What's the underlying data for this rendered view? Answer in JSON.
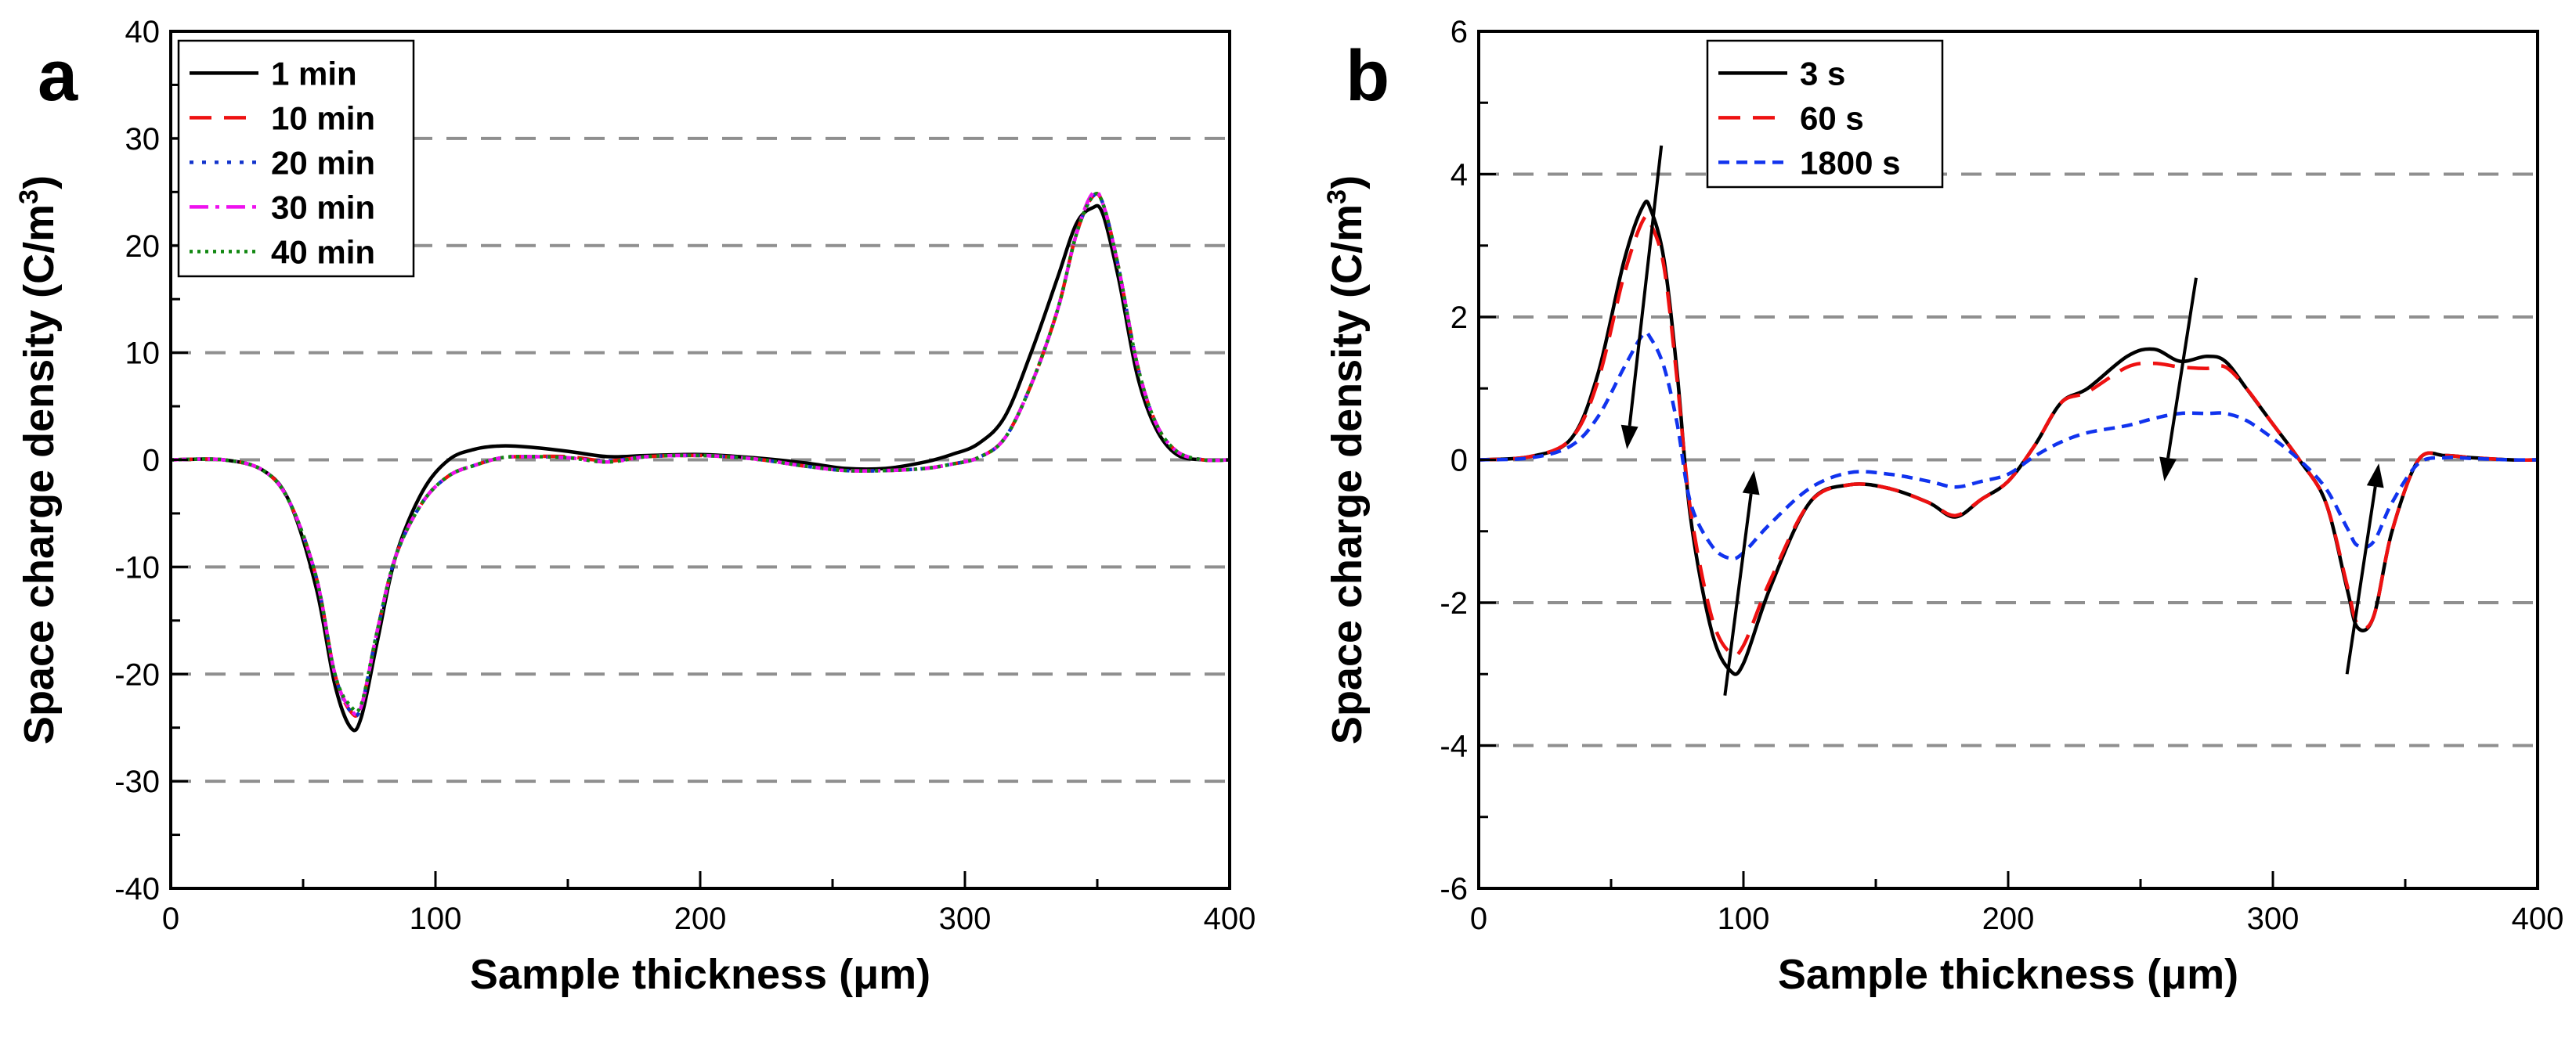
{
  "chart_data": [
    {
      "type": "line",
      "panel_label": "a",
      "title": "",
      "xlabel": "Sample thickness (μm)",
      "ylabel": "Space charge density (C/m³)",
      "ylabel_parts": {
        "main": "Space charge density (C/m",
        "sup": "3",
        "end": ")"
      },
      "xlim": [
        0,
        400
      ],
      "ylim": [
        -40,
        40
      ],
      "xticks": [
        0,
        100,
        200,
        300,
        400
      ],
      "yticks": [
        -40,
        -30,
        -20,
        -10,
        0,
        10,
        20,
        30,
        40
      ],
      "xtick_labels": [
        "0",
        "100",
        "200",
        "300",
        "400"
      ],
      "ytick_labels": [
        "-40",
        "-30",
        "-20",
        "-10",
        "0",
        "10",
        "20",
        "30",
        "40"
      ],
      "grid": "horizontal dashed gray",
      "legend_position": "top-left",
      "series": [
        {
          "name": "1 min",
          "color": "#000000",
          "dash": "solid",
          "x": [
            0,
            20,
            35,
            45,
            55,
            62,
            68,
            72,
            78,
            85,
            95,
            105,
            115,
            125,
            135,
            150,
            165,
            180,
            200,
            220,
            240,
            255,
            270,
            285,
            295,
            305,
            315,
            325,
            335,
            342,
            348,
            352,
            358,
            365,
            372,
            380,
            390,
            400
          ],
          "y": [
            0,
            0,
            -1,
            -4,
            -12,
            -21,
            -25,
            -24,
            -17,
            -9,
            -3,
            0,
            1,
            1.3,
            1.2,
            0.8,
            0.3,
            0.4,
            0.5,
            0.2,
            -0.3,
            -0.8,
            -0.8,
            -0.2,
            0.5,
            1.5,
            4,
            10,
            17,
            22,
            23.5,
            23,
            17,
            8,
            3,
            0.5,
            0,
            0
          ]
        },
        {
          "name": "10 min",
          "color": "#ee1111",
          "dash": "28,16",
          "x": [
            0,
            20,
            35,
            45,
            55,
            62,
            68,
            72,
            78,
            85,
            95,
            105,
            115,
            125,
            135,
            150,
            165,
            180,
            200,
            220,
            240,
            255,
            270,
            285,
            295,
            305,
            315,
            325,
            335,
            342,
            348,
            352,
            358,
            365,
            372,
            380,
            390,
            400
          ],
          "y": [
            0,
            0,
            -1,
            -4,
            -11,
            -20,
            -23.5,
            -23,
            -16,
            -9,
            -4,
            -1.5,
            -0.5,
            0.2,
            0.3,
            0.3,
            -0.1,
            0.3,
            0.4,
            0.1,
            -0.6,
            -1,
            -1,
            -0.8,
            -0.4,
            0.2,
            2,
            7,
            14,
            21,
            24.5,
            24,
            18,
            9,
            3.5,
            0.8,
            0,
            0
          ]
        },
        {
          "name": "20 min",
          "color": "#1133cc",
          "dash": "5,11",
          "x": [
            0,
            20,
            35,
            45,
            55,
            62,
            68,
            72,
            78,
            85,
            95,
            105,
            115,
            125,
            135,
            150,
            165,
            180,
            200,
            220,
            240,
            255,
            270,
            285,
            295,
            305,
            315,
            325,
            335,
            342,
            348,
            352,
            358,
            365,
            372,
            380,
            390,
            400
          ],
          "y": [
            0,
            0,
            -1,
            -4,
            -11,
            -20,
            -23.5,
            -23,
            -16,
            -9,
            -4,
            -1.5,
            -0.5,
            0.2,
            0.3,
            0.2,
            -0.1,
            0.3,
            0.4,
            0.1,
            -0.6,
            -1,
            -1,
            -0.8,
            -0.4,
            0.2,
            2,
            7,
            14,
            21,
            24.5,
            24,
            18,
            9,
            3.5,
            0.8,
            0,
            0
          ]
        },
        {
          "name": "30 min",
          "color": "#ee11ee",
          "dash": "24,9,5,9",
          "x": [
            0,
            20,
            35,
            45,
            55,
            62,
            68,
            72,
            78,
            85,
            95,
            105,
            115,
            125,
            135,
            150,
            165,
            180,
            200,
            220,
            240,
            255,
            270,
            285,
            295,
            305,
            315,
            325,
            335,
            342,
            348,
            352,
            358,
            365,
            372,
            380,
            390,
            400
          ],
          "y": [
            0,
            0,
            -1,
            -4,
            -11,
            -20,
            -23.3,
            -23,
            -16,
            -9,
            -4,
            -1.5,
            -0.5,
            0.2,
            0.3,
            0.2,
            -0.2,
            0.3,
            0.4,
            0.1,
            -0.6,
            -1,
            -1,
            -0.8,
            -0.4,
            0.2,
            2,
            7,
            14,
            21,
            24.8,
            24,
            18,
            9,
            3.5,
            0.8,
            0,
            0
          ]
        },
        {
          "name": "40 min",
          "color": "#118811",
          "dash": "4,6",
          "x": [
            0,
            20,
            35,
            45,
            55,
            62,
            68,
            72,
            78,
            85,
            95,
            105,
            115,
            125,
            135,
            150,
            165,
            180,
            200,
            220,
            240,
            255,
            270,
            285,
            295,
            305,
            315,
            325,
            335,
            342,
            348,
            352,
            358,
            365,
            372,
            380,
            390,
            400
          ],
          "y": [
            0,
            0,
            -1,
            -4,
            -11,
            -20,
            -23,
            -22.8,
            -16,
            -9,
            -4,
            -1.5,
            -0.5,
            0.2,
            0.3,
            0.2,
            -0.2,
            0.3,
            0.4,
            0.1,
            -0.6,
            -1,
            -1,
            -0.8,
            -0.4,
            0.2,
            2,
            7,
            14,
            21,
            24.5,
            24,
            18,
            9,
            3.5,
            0.8,
            0,
            0
          ]
        }
      ]
    },
    {
      "type": "line",
      "panel_label": "b",
      "title": "",
      "xlabel": "Sample thickness (μm)",
      "ylabel": "Space charge density (C/m³)",
      "ylabel_parts": {
        "main": "Space charge density (C/m",
        "sup": "3",
        "end": ")"
      },
      "xlim": [
        0,
        400
      ],
      "ylim": [
        -6,
        6
      ],
      "xticks": [
        0,
        100,
        200,
        300,
        400
      ],
      "yticks": [
        -6,
        -4,
        -2,
        0,
        2,
        4,
        6
      ],
      "xtick_labels": [
        "0",
        "100",
        "200",
        "300",
        "400"
      ],
      "ytick_labels": [
        "-6",
        "-4",
        "-2",
        "0",
        "2",
        "4",
        "6"
      ],
      "grid": "horizontal dashed gray",
      "legend_position": "top-left",
      "series": [
        {
          "name": "3 s",
          "color": "#000000",
          "dash": "solid",
          "x": [
            0,
            20,
            35,
            45,
            55,
            62,
            65,
            70,
            75,
            80,
            88,
            95,
            100,
            110,
            125,
            140,
            155,
            170,
            180,
            190,
            200,
            210,
            220,
            230,
            245,
            255,
            265,
            275,
            282,
            290,
            300,
            310,
            320,
            328,
            332,
            338,
            345,
            355,
            365,
            375,
            390,
            400
          ],
          "y": [
            0,
            0.05,
            0.3,
            1.2,
            2.8,
            3.55,
            3.5,
            2.8,
            1.2,
            -0.8,
            -2.4,
            -2.95,
            -2.85,
            -1.8,
            -0.6,
            -0.35,
            -0.4,
            -0.6,
            -0.8,
            -0.55,
            -0.3,
            0.2,
            0.8,
            1.0,
            1.45,
            1.55,
            1.38,
            1.45,
            1.38,
            1.0,
            0.5,
            0,
            -0.6,
            -1.8,
            -2.35,
            -2.2,
            -1.0,
            0,
            0.06,
            0.03,
            0,
            0
          ]
        },
        {
          "name": "60 s",
          "color": "#ee1111",
          "dash": "28,16",
          "x": [
            0,
            20,
            35,
            45,
            55,
            62,
            65,
            70,
            75,
            80,
            88,
            95,
            100,
            110,
            125,
            140,
            155,
            170,
            180,
            190,
            200,
            210,
            220,
            230,
            245,
            255,
            265,
            275,
            282,
            290,
            300,
            310,
            320,
            328,
            332,
            338,
            345,
            355,
            365,
            375,
            390,
            400
          ],
          "y": [
            0,
            0.05,
            0.3,
            1.1,
            2.6,
            3.35,
            3.3,
            2.7,
            1.1,
            -0.7,
            -2.2,
            -2.7,
            -2.6,
            -1.7,
            -0.6,
            -0.35,
            -0.4,
            -0.6,
            -0.78,
            -0.55,
            -0.3,
            0.2,
            0.8,
            0.95,
            1.3,
            1.35,
            1.3,
            1.28,
            1.3,
            1.0,
            0.5,
            0,
            -0.6,
            -1.75,
            -2.3,
            -2.2,
            -1.0,
            0,
            0.06,
            0.03,
            0,
            0
          ]
        },
        {
          "name": "1800 s",
          "color": "#1133ee",
          "dash": "14,9",
          "x": [
            0,
            20,
            35,
            45,
            55,
            62,
            65,
            70,
            75,
            80,
            88,
            95,
            100,
            110,
            125,
            140,
            155,
            170,
            180,
            190,
            200,
            210,
            220,
            230,
            245,
            255,
            265,
            275,
            282,
            290,
            300,
            310,
            320,
            328,
            332,
            338,
            345,
            355,
            365,
            375,
            390,
            400
          ],
          "y": [
            0,
            0.03,
            0.2,
            0.6,
            1.3,
            1.75,
            1.7,
            1.3,
            0.5,
            -0.6,
            -1.2,
            -1.38,
            -1.3,
            -0.9,
            -0.4,
            -0.18,
            -0.2,
            -0.3,
            -0.38,
            -0.3,
            -0.2,
            0.05,
            0.25,
            0.38,
            0.48,
            0.58,
            0.65,
            0.65,
            0.65,
            0.55,
            0.3,
            0,
            -0.4,
            -0.95,
            -1.2,
            -1.15,
            -0.6,
            -0.05,
            0.03,
            0.02,
            0,
            0
          ]
        }
      ]
    }
  ]
}
